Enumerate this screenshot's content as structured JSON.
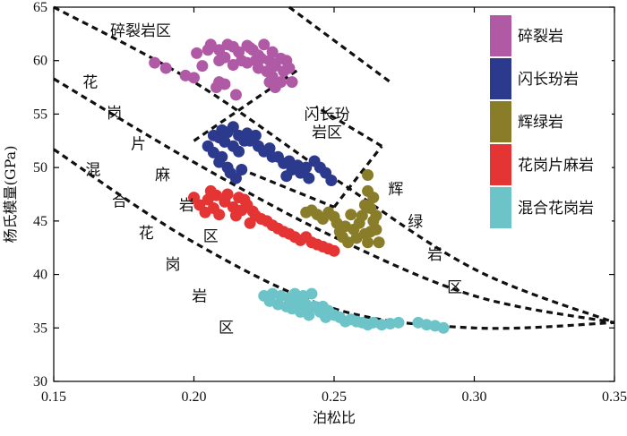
{
  "chart_data": {
    "type": "scatter",
    "title": "",
    "xlabel": "泊松比",
    "ylabel": "杨氏模量(GPa)",
    "xlim": [
      0.15,
      0.35
    ],
    "ylim": [
      30,
      65
    ],
    "x_ticks": [
      "0.15",
      "0.20",
      "0.25",
      "0.30",
      "0.35"
    ],
    "y_ticks": [
      "30",
      "35",
      "40",
      "45",
      "50",
      "55",
      "60",
      "65"
    ],
    "legend_position": "top-right",
    "series": [
      {
        "name": "碎裂岩",
        "color": "#b05aa6",
        "shape": "rect"
      },
      {
        "name": "闪长玢岩",
        "color": "#2b3a8c",
        "shape": "rect"
      },
      {
        "name": "辉绿岩",
        "color": "#8a7d2a",
        "shape": "rect"
      },
      {
        "name": "花岗片麻岩",
        "color": "#e53434",
        "shape": "rect"
      },
      {
        "name": "混合花岗岩",
        "color": "#6cc4c9",
        "shape": "rect"
      }
    ],
    "region_labels": [
      {
        "text": "碎裂岩区",
        "at": [
          0.181,
          62.3
        ],
        "vertical": false
      },
      {
        "text": "闪长玢岩区",
        "at": [
          0.2475,
          54.5
        ],
        "vertical": false,
        "lines": [
          "闪长玢",
          "岩区"
        ]
      },
      {
        "text": "花岗片麻岩区",
        "at": [
          0.163,
          57.5
        ],
        "vertical": true,
        "diagonal_step": [
          0.0086,
          -2.88
        ]
      },
      {
        "text": "混合花岗岩区",
        "at": [
          0.164,
          49.3
        ],
        "vertical": true,
        "diagonal_step": [
          0.0095,
          -2.95
        ]
      },
      {
        "text": "辉绿岩区",
        "at": [
          0.272,
          47.5
        ],
        "vertical": true,
        "diagonal_step": [
          0.007,
          -3.05
        ]
      }
    ],
    "boundaries": [
      {
        "points": [
          [
            0.15,
            65.0
          ],
          [
            0.2,
            58.0
          ],
          [
            0.25,
            49.0
          ],
          [
            0.3,
            40.5
          ],
          [
            0.35,
            35.5
          ]
        ]
      },
      {
        "points": [
          [
            0.15,
            58.3
          ],
          [
            0.2,
            50.5
          ],
          [
            0.25,
            43.5
          ],
          [
            0.3,
            38.0
          ],
          [
            0.35,
            35.5
          ]
        ]
      },
      {
        "points": [
          [
            0.15,
            51.7
          ],
          [
            0.2,
            43.0
          ],
          [
            0.25,
            36.8
          ],
          [
            0.3,
            35.0
          ],
          [
            0.35,
            35.5
          ]
        ]
      },
      {
        "points": [
          [
            0.2,
            52.5
          ],
          [
            0.238,
            59.3
          ]
        ]
      },
      {
        "points": [
          [
            0.234,
            65.0
          ],
          [
            0.27,
            58.0
          ]
        ]
      },
      {
        "points": [
          [
            0.22,
            49.5
          ],
          [
            0.25,
            46.3
          ]
        ]
      },
      {
        "points": [
          [
            0.25,
            46.3
          ],
          [
            0.267,
            52.0
          ]
        ]
      },
      {
        "points": [
          [
            0.267,
            52.0
          ],
          [
            0.2435,
            55.7
          ]
        ]
      }
    ],
    "point_clouds": [
      {
        "series": "碎裂岩",
        "points": [
          [
            0.201,
            60.7
          ],
          [
            0.205,
            61.0
          ],
          [
            0.206,
            61.5
          ],
          [
            0.209,
            61.0
          ],
          [
            0.211,
            60.3
          ],
          [
            0.212,
            61.5
          ],
          [
            0.214,
            61.3
          ],
          [
            0.216,
            60.8
          ],
          [
            0.217,
            60.0
          ],
          [
            0.219,
            61.4
          ],
          [
            0.221,
            61.0
          ],
          [
            0.223,
            60.5
          ],
          [
            0.225,
            61.5
          ],
          [
            0.227,
            60.0
          ],
          [
            0.223,
            59.3
          ],
          [
            0.226,
            59.0
          ],
          [
            0.228,
            60.8
          ],
          [
            0.229,
            59.5
          ],
          [
            0.231,
            60.2
          ],
          [
            0.232,
            59.0
          ],
          [
            0.233,
            60.0
          ],
          [
            0.228,
            58.5
          ],
          [
            0.227,
            58.0
          ],
          [
            0.229,
            57.5
          ],
          [
            0.231,
            58.0
          ],
          [
            0.234,
            59.3
          ],
          [
            0.235,
            58.0
          ],
          [
            0.222,
            60.0
          ],
          [
            0.219,
            59.8
          ],
          [
            0.214,
            59.6
          ],
          [
            0.209,
            60.0
          ],
          [
            0.203,
            59.5
          ],
          [
            0.186,
            59.8
          ],
          [
            0.19,
            59.3
          ],
          [
            0.197,
            58.6
          ],
          [
            0.2,
            58.4
          ],
          [
            0.209,
            58.0
          ],
          [
            0.208,
            57.5
          ],
          [
            0.211,
            57.8
          ],
          [
            0.215,
            56.8
          ],
          [
            0.224,
            60.2
          ],
          [
            0.22,
            61.2
          ]
        ]
      },
      {
        "series": "闪长玢岩",
        "points": [
          [
            0.205,
            52.0
          ],
          [
            0.207,
            53.0
          ],
          [
            0.207,
            51.4
          ],
          [
            0.209,
            52.8
          ],
          [
            0.209,
            50.5
          ],
          [
            0.21,
            51.0
          ],
          [
            0.211,
            52.4
          ],
          [
            0.212,
            53.3
          ],
          [
            0.212,
            50.0
          ],
          [
            0.213,
            49.5
          ],
          [
            0.214,
            52.0
          ],
          [
            0.214,
            53.8
          ],
          [
            0.215,
            49.0
          ],
          [
            0.216,
            51.5
          ],
          [
            0.216,
            53.0
          ],
          [
            0.218,
            52.5
          ],
          [
            0.219,
            53.2
          ],
          [
            0.22,
            52.5
          ],
          [
            0.222,
            53.0
          ],
          [
            0.223,
            52.0
          ],
          [
            0.225,
            51.5
          ],
          [
            0.227,
            51.8
          ],
          [
            0.228,
            51.0
          ],
          [
            0.23,
            51.0
          ],
          [
            0.232,
            50.4
          ],
          [
            0.234,
            50.6
          ],
          [
            0.235,
            49.8
          ],
          [
            0.237,
            50.2
          ],
          [
            0.238,
            49.5
          ],
          [
            0.24,
            50.0
          ],
          [
            0.241,
            49.0
          ],
          [
            0.243,
            50.6
          ],
          [
            0.245,
            50.0
          ],
          [
            0.247,
            49.5
          ],
          [
            0.249,
            48.8
          ],
          [
            0.233,
            49.2
          ],
          [
            0.21,
            53.5
          ],
          [
            0.217,
            49.8
          ]
        ]
      },
      {
        "series": "辉绿岩",
        "points": [
          [
            0.24,
            45.8
          ],
          [
            0.242,
            46.0
          ],
          [
            0.244,
            45.6
          ],
          [
            0.246,
            45.2
          ],
          [
            0.248,
            45.8
          ],
          [
            0.25,
            45.4
          ],
          [
            0.251,
            44.8
          ],
          [
            0.252,
            44.0
          ],
          [
            0.253,
            43.5
          ],
          [
            0.254,
            44.5
          ],
          [
            0.255,
            43.0
          ],
          [
            0.256,
            45.6
          ],
          [
            0.257,
            44.2
          ],
          [
            0.258,
            43.4
          ],
          [
            0.259,
            44.8
          ],
          [
            0.26,
            45.5
          ],
          [
            0.261,
            43.8
          ],
          [
            0.262,
            43.0
          ],
          [
            0.263,
            44.0
          ],
          [
            0.261,
            46.5
          ],
          [
            0.262,
            47.8
          ],
          [
            0.262,
            49.3
          ],
          [
            0.263,
            46.2
          ],
          [
            0.264,
            47.2
          ],
          [
            0.265,
            45.5
          ],
          [
            0.265,
            44.2
          ],
          [
            0.266,
            43.0
          ],
          [
            0.264,
            45.0
          ]
        ]
      },
      {
        "series": "花岗片麻岩",
        "points": [
          [
            0.2,
            47.2
          ],
          [
            0.202,
            46.5
          ],
          [
            0.204,
            45.8
          ],
          [
            0.205,
            47.0
          ],
          [
            0.207,
            46.2
          ],
          [
            0.208,
            47.4
          ],
          [
            0.209,
            45.6
          ],
          [
            0.211,
            46.8
          ],
          [
            0.212,
            47.5
          ],
          [
            0.214,
            46.3
          ],
          [
            0.215,
            45.5
          ],
          [
            0.217,
            46.0
          ],
          [
            0.218,
            47.0
          ],
          [
            0.219,
            46.5
          ],
          [
            0.221,
            45.9
          ],
          [
            0.222,
            45.5
          ],
          [
            0.224,
            45.2
          ],
          [
            0.226,
            45.0
          ],
          [
            0.228,
            44.6
          ],
          [
            0.23,
            44.3
          ],
          [
            0.232,
            44.0
          ],
          [
            0.234,
            43.8
          ],
          [
            0.236,
            43.5
          ],
          [
            0.238,
            43.2
          ],
          [
            0.24,
            43.5
          ],
          [
            0.242,
            43.0
          ],
          [
            0.244,
            42.8
          ],
          [
            0.246,
            42.6
          ],
          [
            0.248,
            42.4
          ],
          [
            0.25,
            42.2
          ],
          [
            0.206,
            47.8
          ],
          [
            0.216,
            47.2
          ],
          [
            0.22,
            44.8
          ]
        ]
      },
      {
        "series": "混合花岗岩",
        "points": [
          [
            0.225,
            38.0
          ],
          [
            0.227,
            37.5
          ],
          [
            0.228,
            38.2
          ],
          [
            0.23,
            37.2
          ],
          [
            0.231,
            38.0
          ],
          [
            0.233,
            37.0
          ],
          [
            0.234,
            37.8
          ],
          [
            0.235,
            36.8
          ],
          [
            0.237,
            37.5
          ],
          [
            0.238,
            36.5
          ],
          [
            0.24,
            37.2
          ],
          [
            0.241,
            36.2
          ],
          [
            0.242,
            38.2
          ],
          [
            0.243,
            37.0
          ],
          [
            0.245,
            36.5
          ],
          [
            0.246,
            37.0
          ],
          [
            0.247,
            36.0
          ],
          [
            0.248,
            36.6
          ],
          [
            0.25,
            36.2
          ],
          [
            0.252,
            36.0
          ],
          [
            0.254,
            35.6
          ],
          [
            0.256,
            35.8
          ],
          [
            0.258,
            35.6
          ],
          [
            0.26,
            35.5
          ],
          [
            0.262,
            35.3
          ],
          [
            0.264,
            35.5
          ],
          [
            0.267,
            35.3
          ],
          [
            0.27,
            35.4
          ],
          [
            0.273,
            35.5
          ],
          [
            0.28,
            35.5
          ],
          [
            0.283,
            35.3
          ],
          [
            0.286,
            35.2
          ],
          [
            0.289,
            35.0
          ],
          [
            0.236,
            38.2
          ],
          [
            0.239,
            38.0
          ]
        ]
      }
    ]
  }
}
